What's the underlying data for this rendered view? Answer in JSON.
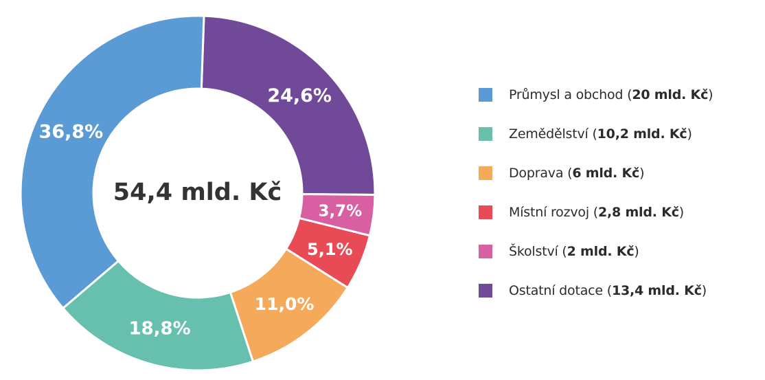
{
  "chart_data": {
    "type": "pie",
    "center_label": "54,4 mld. Kč",
    "slices": [
      {
        "name": "Průmysl a obchod",
        "amount": "20 mld. Kč",
        "value": 36.8,
        "label": "36,8%",
        "color": "#5b9bd5"
      },
      {
        "name": "Zemědělství",
        "amount": "10,2 mld. Kč",
        "value": 18.8,
        "label": "18,8%",
        "color": "#67c0ae"
      },
      {
        "name": "Doprava",
        "amount": "6 mld. Kč",
        "value": 11.0,
        "label": "11,0%",
        "color": "#f5a95a"
      },
      {
        "name": "Místní rozvoj",
        "amount": "2,8 mld. Kč",
        "value": 5.1,
        "label": "5,1%",
        "color": "#e84b55"
      },
      {
        "name": "Školství",
        "amount": "2 mld. Kč",
        "value": 3.7,
        "label": "3,7%",
        "color": "#d95fa3"
      },
      {
        "name": "Ostatní dotace",
        "amount": "13,4 mld. Kč",
        "value": 24.6,
        "label": "24,6%",
        "color": "#704a98"
      }
    ],
    "legend_position": "right"
  }
}
